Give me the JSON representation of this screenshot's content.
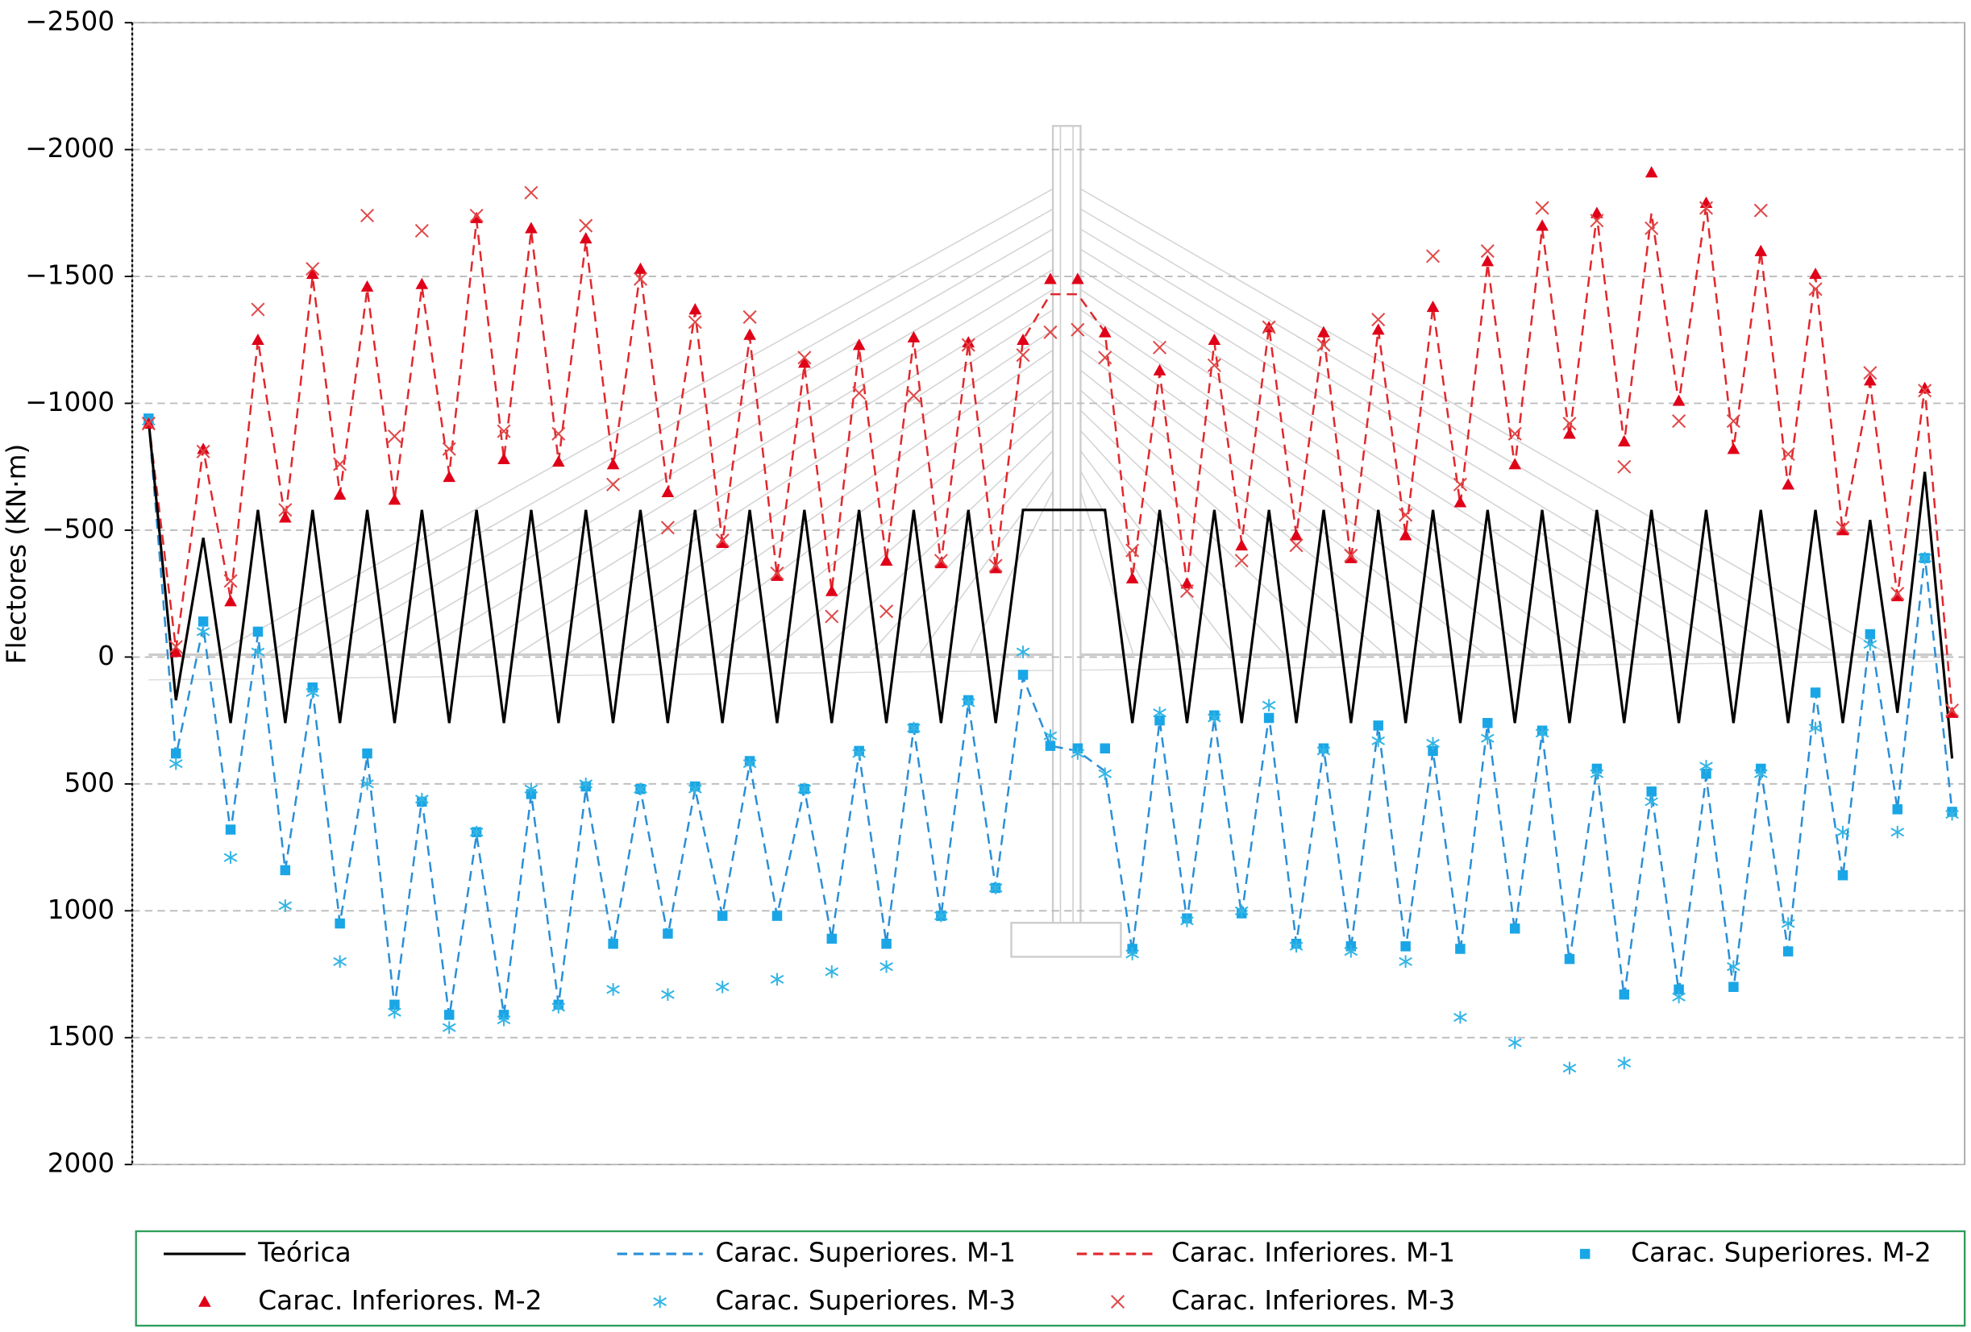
{
  "chart_data": {
    "type": "line",
    "y_label": "Flectores (KN·m)",
    "ylim": [
      -2500,
      2000
    ],
    "yticks": [
      {
        "value": -2500,
        "label": "−2500"
      },
      {
        "value": -2000,
        "label": "−2000"
      },
      {
        "value": -1500,
        "label": "−1500"
      },
      {
        "value": -1000,
        "label": "−1000"
      },
      {
        "value": -500,
        "label": "−500"
      },
      0,
      500,
      1000,
      1500,
      2000
    ],
    "grid": true,
    "legend": "bottom",
    "series": [
      {
        "name": "Teórica",
        "color": "#000000",
        "marker": "solid",
        "values": [
          -930,
          170,
          -470,
          260,
          -580,
          260,
          -580,
          260,
          -580,
          260,
          -580,
          260,
          -580,
          260,
          -580,
          260,
          -580,
          260,
          -580,
          260,
          -580,
          260,
          -580,
          260,
          -580,
          260,
          -580,
          260,
          -580,
          260,
          -580,
          260,
          -580,
          -580,
          -580,
          -580,
          260,
          -580,
          260,
          -580,
          260,
          -580,
          260,
          -580,
          260,
          -580,
          260,
          -580,
          260,
          -580,
          260,
          -580,
          260,
          -580,
          260,
          -580,
          260,
          -580,
          260,
          -580,
          260,
          -580,
          260,
          -540,
          220,
          -730,
          400
        ]
      },
      {
        "name": "Carac. Superiores. M-1",
        "color": "#2a8fd6",
        "marker": "dashed",
        "values": [
          -930,
          390,
          -120,
          690,
          -90,
          840,
          130,
          1050,
          390,
          1380,
          560,
          1420,
          700,
          1410,
          540,
          1370,
          520,
          1140,
          520,
          1100,
          520,
          1020,
          420,
          1020,
          520,
          1110,
          380,
          1130,
          280,
          1020,
          180,
          910,
          80,
          350,
          370,
          450,
          1160,
          250,
          1040,
          240,
          1020,
          230,
          1130,
          360,
          1150,
          270,
          1150,
          370,
          1160,
          260,
          1080,
          300,
          1200,
          440,
          1340,
          530,
          1320,
          470,
          1310,
          440,
          1160,
          140,
          870,
          -100,
          600,
          -400,
          610
        ]
      },
      {
        "name": "Carac. Inferiores. M-1",
        "color": "#e0282e",
        "marker": "dashed",
        "values": [
          -930,
          -30,
          -820,
          -230,
          -1250,
          -540,
          -1500,
          -640,
          -1450,
          -620,
          -1460,
          -720,
          -1720,
          -780,
          -1680,
          -770,
          -1640,
          -750,
          -1520,
          -650,
          -1360,
          -450,
          -1260,
          -320,
          -1150,
          -260,
          -1220,
          -380,
          -1250,
          -370,
          -1240,
          -350,
          -1250,
          -1430,
          -1430,
          -1280,
          -310,
          -1120,
          -290,
          -1240,
          -450,
          -1300,
          -480,
          -1270,
          -380,
          -1290,
          -480,
          -1380,
          -600,
          -1550,
          -750,
          -1690,
          -870,
          -1740,
          -840,
          -1750,
          -1000,
          -1780,
          -820,
          -1600,
          -670,
          -1500,
          -490,
          -1080,
          -240,
          -1060,
          220
        ]
      },
      {
        "name": "Carac. Superiores. M-2",
        "color": "#1aa6e6",
        "marker": "square",
        "values": [
          -940,
          380,
          -140,
          680,
          -100,
          840,
          120,
          1050,
          380,
          1370,
          570,
          1410,
          690,
          1410,
          540,
          1370,
          510,
          1130,
          520,
          1090,
          510,
          1020,
          410,
          1020,
          520,
          1110,
          370,
          1130,
          280,
          1020,
          170,
          910,
          70,
          350,
          360,
          360,
          1150,
          250,
          1030,
          230,
          1010,
          240,
          1130,
          360,
          1140,
          270,
          1140,
          370,
          1150,
          260,
          1070,
          290,
          1190,
          440,
          1330,
          530,
          1310,
          460,
          1300,
          440,
          1160,
          140,
          860,
          -90,
          600,
          -390,
          610
        ]
      },
      {
        "name": "Carac. Inferiores. M-2",
        "color": "#e00018",
        "marker": "triangle",
        "values": [
          -920,
          -20,
          -820,
          -220,
          -1250,
          -550,
          -1510,
          -640,
          -1460,
          -620,
          -1470,
          -710,
          -1730,
          -780,
          -1690,
          -770,
          -1650,
          -760,
          -1530,
          -650,
          -1370,
          -450,
          -1270,
          -320,
          -1160,
          -260,
          -1230,
          -380,
          -1260,
          -370,
          -1240,
          -350,
          -1250,
          -1490,
          -1490,
          -1280,
          -310,
          -1130,
          -290,
          -1250,
          -440,
          -1300,
          -480,
          -1280,
          -390,
          -1290,
          -480,
          -1380,
          -610,
          -1560,
          -760,
          -1700,
          -880,
          -1750,
          -850,
          -1910,
          -1010,
          -1790,
          -820,
          -1600,
          -680,
          -1510,
          -500,
          -1090,
          -240,
          -1060,
          220
        ]
      },
      {
        "name": "Carac. Superiores. M-3",
        "color": "#33b5e5",
        "marker": "asterisk",
        "values": [
          -930,
          420,
          -100,
          790,
          -20,
          980,
          140,
          1200,
          500,
          1400,
          560,
          1460,
          690,
          1430,
          520,
          1380,
          500,
          1310,
          520,
          1330,
          520,
          1300,
          420,
          1270,
          520,
          1240,
          380,
          1220,
          280,
          1020,
          180,
          910,
          -20,
          310,
          380,
          460,
          1170,
          220,
          1040,
          240,
          1000,
          190,
          1140,
          370,
          1160,
          330,
          1200,
          340,
          1420,
          320,
          1520,
          300,
          1620,
          460,
          1600,
          570,
          1340,
          430,
          1220,
          460,
          1050,
          280,
          690,
          -50,
          690,
          -390,
          620
        ]
      },
      {
        "name": "Carac. Inferiores. M-3",
        "color": "#e04848",
        "marker": "x",
        "values": [
          -920,
          -40,
          -810,
          -300,
          -1370,
          -580,
          -1530,
          -760,
          -1740,
          -870,
          -1680,
          -820,
          -1740,
          -890,
          -1830,
          -880,
          -1700,
          -680,
          -1490,
          -510,
          -1320,
          -460,
          -1340,
          -330,
          -1180,
          -160,
          -1040,
          -180,
          -1030,
          -380,
          -1230,
          -360,
          -1190,
          -1280,
          -1290,
          -1180,
          -420,
          -1220,
          -260,
          -1150,
          -380,
          -1300,
          -440,
          -1230,
          -400,
          -1330,
          -560,
          -1580,
          -680,
          -1600,
          -880,
          -1770,
          -920,
          -1720,
          -750,
          -1690,
          -930,
          -1770,
          -930,
          -1760,
          -800,
          -1450,
          -510,
          -1120,
          -250,
          -1050,
          210
        ]
      }
    ]
  }
}
